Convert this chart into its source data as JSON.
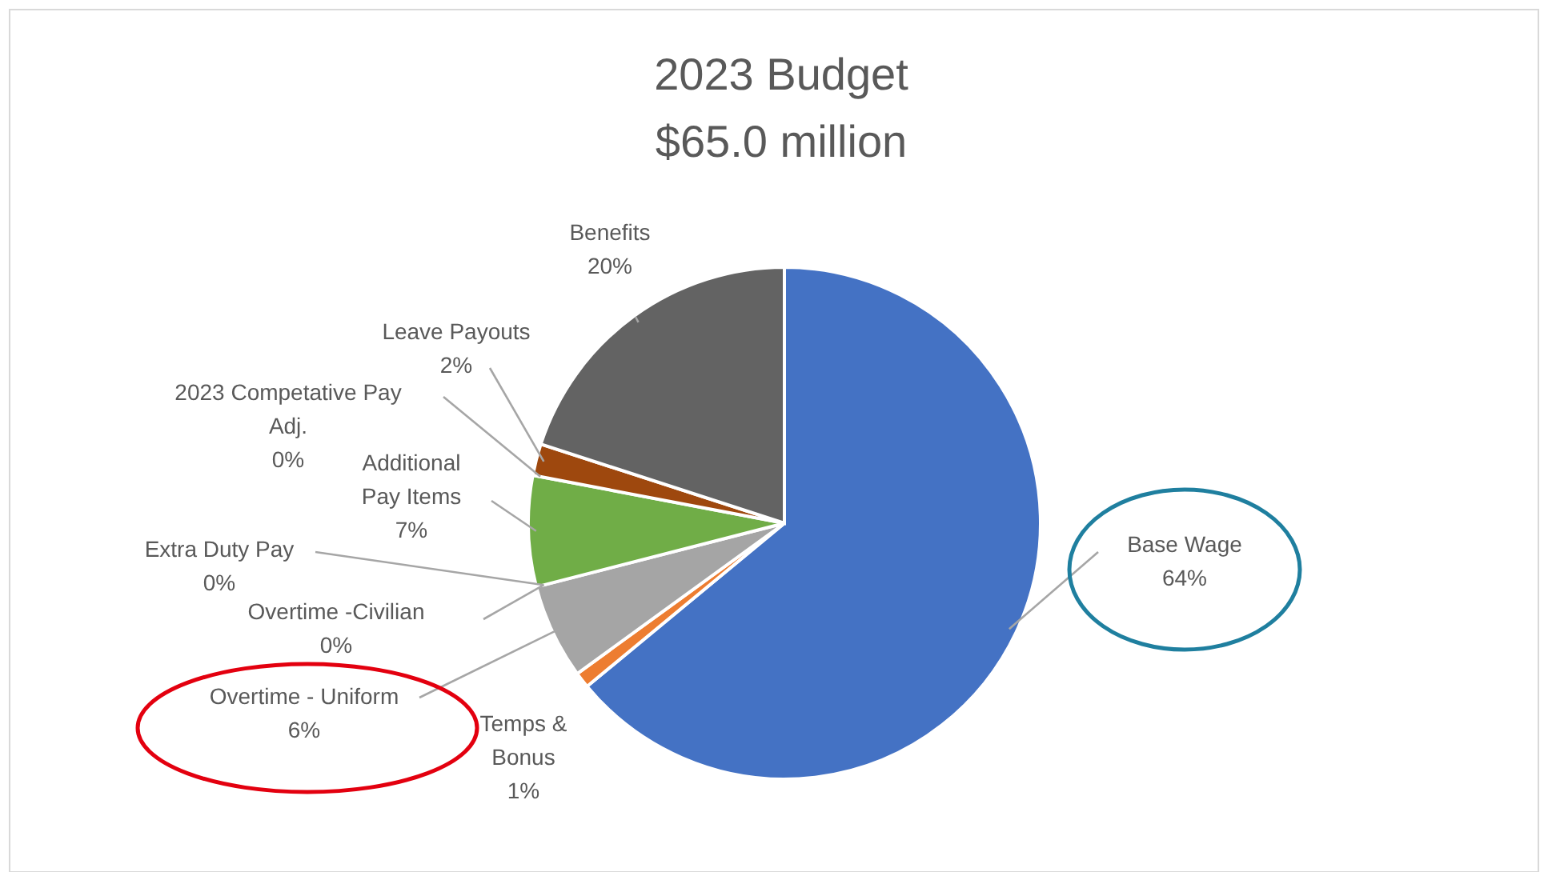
{
  "chart_data": {
    "type": "pie",
    "title": "2023 Budget\n$65.0 million",
    "categories": [
      "Base Wage",
      "Temps & Bonus",
      "Overtime - Uniform",
      "Overtime -Civilian",
      "Extra Duty Pay",
      "Additional Pay Items",
      "2023 Competative Pay Adj.",
      "Leave Payouts",
      "Benefits"
    ],
    "values": [
      64,
      1,
      6,
      0,
      0,
      7,
      0,
      2,
      20
    ],
    "colors": [
      "#4472c4",
      "#ed7d31",
      "#a5a5a5",
      "#5b9bd5",
      "#ffc000",
      "#70ad47",
      "#264478",
      "#9e480e",
      "#636363"
    ],
    "value_labels": [
      "64%",
      "1%",
      "6%",
      "0%",
      "0%",
      "7%",
      "0%",
      "2%",
      "20%"
    ]
  }
}
